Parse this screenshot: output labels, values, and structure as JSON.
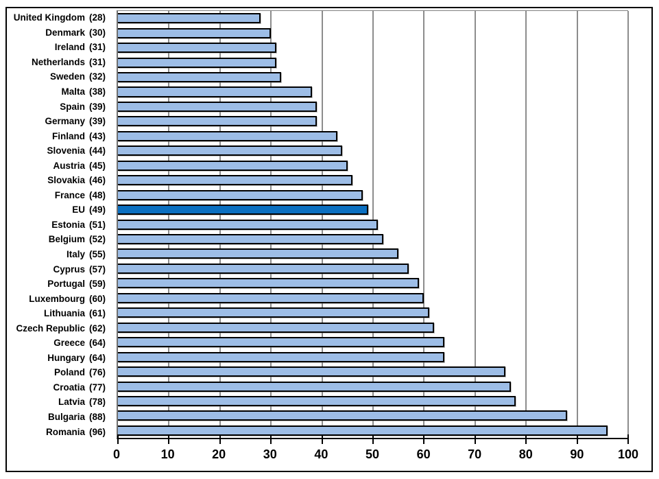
{
  "chart_data": {
    "type": "bar",
    "orientation": "horizontal",
    "title": "",
    "xlabel": "",
    "ylabel": "",
    "xlim": [
      0,
      100
    ],
    "x_ticks": [
      0,
      10,
      20,
      30,
      40,
      50,
      60,
      70,
      80,
      90,
      100
    ],
    "grid": "vertical",
    "legend": "none",
    "label_format": "{category} ({value})",
    "categories": [
      "United Kingdom",
      "Denmark",
      "Ireland",
      "Netherlands",
      "Sweden",
      "Malta",
      "Spain",
      "Germany",
      "Finland",
      "Slovenia",
      "Austria",
      "Slovakia",
      "France",
      "EU",
      "Estonia",
      "Belgium",
      "Italy",
      "Cyprus",
      "Portugal",
      "Luxembourg",
      "Lithuania",
      "Czech Republic",
      "Greece",
      "Hungary",
      "Poland",
      "Croatia",
      "Latvia",
      "Bulgaria",
      "Romania"
    ],
    "values": [
      28,
      30,
      31,
      31,
      32,
      38,
      39,
      39,
      43,
      44,
      45,
      46,
      48,
      49,
      51,
      52,
      55,
      57,
      59,
      60,
      61,
      62,
      64,
      64,
      76,
      77,
      78,
      88,
      96
    ],
    "highlight_category": "EU",
    "colors": {
      "bar_fill": "#9dbde6",
      "highlight_fill": "#0b6fc0",
      "bar_border": "#000000",
      "gridline": "#8c8c8c",
      "axis_line": "#000000",
      "figure_border": "#000000",
      "text": "#000000",
      "background": "#ffffff"
    }
  }
}
